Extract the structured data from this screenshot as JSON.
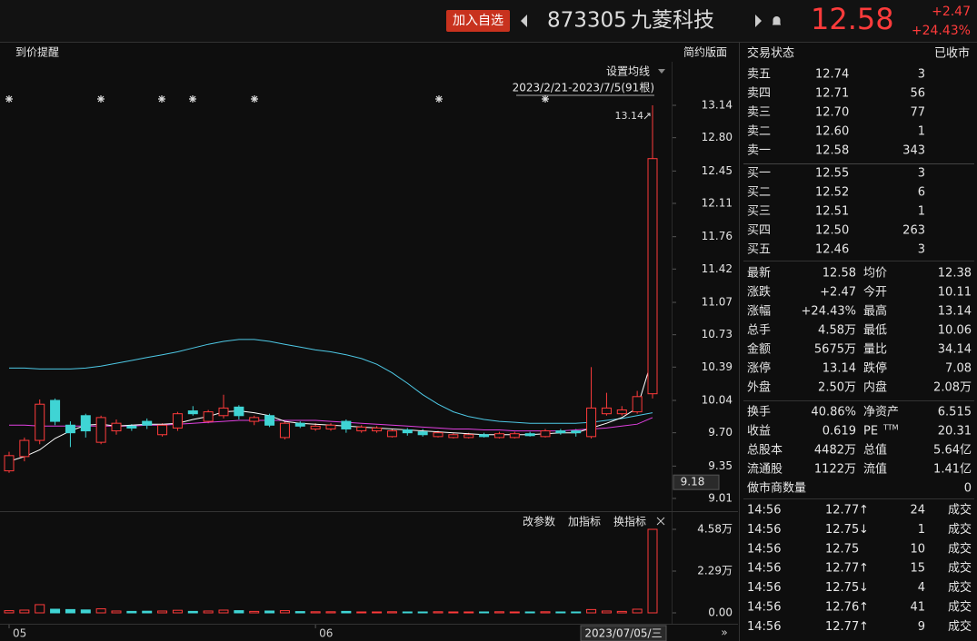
{
  "header": {
    "watch_button": "加入自选",
    "code": "873305",
    "name": "九菱科技",
    "price": "12.58",
    "change": "+2.47",
    "change_pct": "+24.43%"
  },
  "toolbar": {
    "alert": "到价提醒",
    "layout": "简约版面",
    "ma_settings": "设置均线",
    "range": "2023/2/21-2023/7/5(91根)"
  },
  "indicator_toolbar": [
    "改参数",
    "加指标",
    "换指标"
  ],
  "chart_data": {
    "type": "candlestick",
    "categories": [
      "05",
      null,
      null,
      null,
      null,
      null,
      null,
      null,
      null,
      null,
      null,
      null,
      null,
      null,
      null,
      null,
      null,
      null,
      null,
      null,
      "06",
      null,
      null,
      null,
      null,
      null,
      null,
      null,
      null,
      null,
      null,
      null,
      null,
      null,
      null,
      null,
      null,
      null,
      null,
      null,
      null,
      null,
      null
    ],
    "open": [
      9.3,
      9.45,
      9.62,
      10.04,
      9.78,
      9.88,
      9.6,
      9.72,
      9.77,
      9.82,
      9.68,
      9.75,
      9.93,
      9.82,
      9.88,
      9.97,
      9.82,
      9.88,
      9.65,
      9.8,
      9.74,
      9.74,
      9.82,
      9.72,
      9.72,
      9.66,
      9.73,
      9.71,
      9.66,
      9.65,
      9.65,
      9.68,
      9.65,
      9.65,
      9.69,
      9.66,
      9.72,
      9.72,
      9.66,
      9.9,
      9.9,
      9.92,
      10.11
    ],
    "high": [
      9.5,
      9.65,
      10.05,
      10.06,
      9.82,
      9.9,
      9.88,
      9.84,
      9.79,
      9.85,
      9.8,
      9.92,
      9.98,
      9.94,
      10.1,
      9.99,
      9.88,
      9.9,
      9.82,
      9.82,
      9.8,
      9.8,
      9.84,
      9.78,
      9.77,
      9.74,
      9.75,
      9.74,
      9.72,
      9.7,
      9.7,
      9.7,
      9.71,
      9.71,
      9.71,
      9.74,
      9.74,
      9.74,
      10.39,
      10.12,
      9.98,
      10.14,
      13.14
    ],
    "low": [
      9.28,
      9.4,
      9.58,
      9.78,
      9.55,
      9.65,
      9.58,
      9.68,
      9.72,
      9.74,
      9.66,
      9.72,
      9.88,
      9.8,
      9.85,
      9.84,
      9.78,
      9.76,
      9.63,
      9.75,
      9.72,
      9.72,
      9.7,
      9.7,
      9.7,
      9.65,
      9.67,
      9.66,
      9.65,
      9.64,
      9.64,
      9.65,
      9.64,
      9.64,
      9.66,
      9.65,
      9.68,
      9.66,
      9.64,
      9.88,
      9.88,
      9.9,
      10.06
    ],
    "close": [
      9.46,
      9.62,
      10.0,
      9.82,
      9.7,
      9.72,
      9.86,
      9.8,
      9.75,
      9.78,
      9.78,
      9.9,
      9.9,
      9.92,
      9.96,
      9.88,
      9.86,
      9.78,
      9.8,
      9.77,
      9.77,
      9.78,
      9.74,
      9.76,
      9.75,
      9.72,
      9.7,
      9.68,
      9.7,
      9.68,
      9.68,
      9.66,
      9.69,
      9.69,
      9.67,
      9.72,
      9.7,
      9.7,
      9.96,
      9.96,
      9.94,
      10.08,
      12.58
    ],
    "volume": [
      0.12,
      0.15,
      0.45,
      0.2,
      0.18,
      0.16,
      0.22,
      0.1,
      0.08,
      0.09,
      0.1,
      0.14,
      0.08,
      0.1,
      0.15,
      0.12,
      0.08,
      0.1,
      0.12,
      0.07,
      0.06,
      0.06,
      0.08,
      0.05,
      0.05,
      0.06,
      0.05,
      0.05,
      0.06,
      0.05,
      0.05,
      0.05,
      0.06,
      0.05,
      0.05,
      0.06,
      0.05,
      0.05,
      0.18,
      0.1,
      0.08,
      0.2,
      4.58
    ],
    "up_color": "#ff3b3b",
    "down_color": "#3fd4d4",
    "ma": [
      {
        "color": "#4ec9e6",
        "values": [
          10.38,
          10.38,
          10.37,
          10.37,
          10.37,
          10.38,
          10.4,
          10.43,
          10.46,
          10.49,
          10.52,
          10.55,
          10.59,
          10.63,
          10.66,
          10.68,
          10.68,
          10.66,
          10.63,
          10.6,
          10.57,
          10.55,
          10.52,
          10.48,
          10.42,
          10.33,
          10.22,
          10.1,
          10.0,
          9.92,
          9.87,
          9.84,
          9.82,
          9.81,
          9.8,
          9.8,
          9.8,
          9.8,
          9.81,
          9.83,
          9.85,
          9.88,
          9.91
        ]
      },
      {
        "color": "#e040e0",
        "values": [
          9.78,
          9.78,
          9.77,
          9.77,
          9.77,
          9.77,
          9.77,
          9.77,
          9.77,
          9.78,
          9.78,
          9.79,
          9.8,
          9.81,
          9.82,
          9.83,
          9.83,
          9.83,
          9.83,
          9.83,
          9.83,
          9.82,
          9.81,
          9.8,
          9.79,
          9.78,
          9.77,
          9.76,
          9.75,
          9.74,
          9.74,
          9.73,
          9.73,
          9.72,
          9.72,
          9.72,
          9.72,
          9.73,
          9.74,
          9.75,
          9.77,
          9.79,
          9.86
        ]
      },
      {
        "color": "#ffffff",
        "values": [
          9.4,
          9.45,
          9.52,
          9.64,
          9.72,
          9.78,
          9.79,
          9.77,
          9.78,
          9.79,
          9.79,
          9.8,
          9.84,
          9.87,
          9.92,
          9.93,
          9.91,
          9.88,
          9.82,
          9.8,
          9.79,
          9.78,
          9.77,
          9.76,
          9.75,
          9.74,
          9.73,
          9.72,
          9.71,
          9.7,
          9.69,
          9.68,
          9.68,
          9.68,
          9.68,
          9.69,
          9.7,
          9.7,
          9.75,
          9.8,
          9.86,
          9.96,
          10.49
        ]
      }
    ],
    "ylim": [
      9.01,
      13.14
    ],
    "yticks": [
      13.14,
      {
        "value": 12.8,
        "label": "12.80"
      },
      12.45,
      12.11,
      11.76,
      11.42,
      11.07,
      10.73,
      10.39,
      10.04,
      {
        "value": 9.7,
        "label": "9.70"
      },
      9.35,
      9.01
    ],
    "max_label": 13.14,
    "cursor_price": 9.18,
    "cursor_date": "2023/07/05/三",
    "vol_ylim": [
      0,
      4.58
    ],
    "vol_yticks": [
      {
        "value": 4.58,
        "label": "4.58万"
      },
      {
        "value": 2.29,
        "label": "2.29万"
      },
      {
        "value": 0,
        "label": "0.00"
      }
    ]
  },
  "book": {
    "status_label": "交易状态",
    "status": "已收市",
    "price_color": "#ff3b3b",
    "sell": [
      {
        "label": "卖五",
        "price": "12.74",
        "volume": "3"
      },
      {
        "label": "卖四",
        "price": "12.71",
        "volume": "56"
      },
      {
        "label": "卖三",
        "price": "12.70",
        "volume": "77"
      },
      {
        "label": "卖二",
        "price": "12.60",
        "volume": "1"
      },
      {
        "label": "卖一",
        "price": "12.58",
        "volume": "343"
      }
    ],
    "buy": [
      {
        "label": "买一",
        "price": "12.55",
        "volume": "3"
      },
      {
        "label": "买二",
        "price": "12.52",
        "volume": "6"
      },
      {
        "label": "买三",
        "price": "12.51",
        "volume": "1"
      },
      {
        "label": "买四",
        "price": "12.50",
        "volume": "263"
      },
      {
        "label": "买五",
        "price": "12.46",
        "volume": "3"
      }
    ]
  },
  "quote_stats": [
    [
      {
        "label": "最新",
        "value": "12.58",
        "color": "#ff3b3b"
      },
      {
        "label": "均价",
        "value": "12.38",
        "color": "#ff3b3b"
      }
    ],
    [
      {
        "label": "涨跌",
        "value": "+2.47",
        "color": "#ff3b3b"
      },
      {
        "label": "今开",
        "value": "10.11",
        "color": "#e6e6e6"
      }
    ],
    [
      {
        "label": "涨幅",
        "value": "+24.43%",
        "color": "#ff3b3b"
      },
      {
        "label": "最高",
        "value": "13.14",
        "color": "#ff3b3b"
      }
    ],
    [
      {
        "label": "总手",
        "value": "4.58万",
        "color": "#e6e6e6"
      },
      {
        "label": "最低",
        "value": "10.06",
        "color": "#1fc01f"
      }
    ],
    [
      {
        "label": "金额",
        "value": "5675万",
        "color": "#3ad6f0"
      },
      {
        "label": "量比",
        "value": "34.14",
        "color": "#e6e6e6"
      }
    ],
    [
      {
        "label": "涨停",
        "value": "13.14",
        "color": "#ff3b3b"
      },
      {
        "label": "跌停",
        "value": "7.08",
        "color": "#1fc01f"
      }
    ],
    [
      {
        "label": "外盘",
        "value": "2.50万",
        "color": "#ff3b3b"
      },
      {
        "label": "内盘",
        "value": "2.08万",
        "color": "#1fc01f"
      }
    ]
  ],
  "fundamentals": [
    [
      {
        "label": "换手",
        "value": "40.86%"
      },
      {
        "label": "净资产",
        "value": "6.515"
      }
    ],
    [
      {
        "label": "收益",
        "value": "0.619"
      },
      {
        "label": "PE",
        "sup": "TTM",
        "value": "20.31"
      }
    ],
    [
      {
        "label": "总股本",
        "value": "4482万"
      },
      {
        "label": "总值",
        "value": "5.64亿"
      }
    ],
    [
      {
        "label": "流通股",
        "value": "1122万"
      },
      {
        "label": "流值",
        "value": "1.41亿"
      }
    ],
    [
      {
        "label": "做市商数量",
        "value": "0"
      }
    ]
  ],
  "trades": [
    {
      "time": "14:56",
      "price": "12.77",
      "arrow": "↑",
      "volume": "24",
      "status": "成交",
      "color": "#ff3b3b"
    },
    {
      "time": "14:56",
      "price": "12.75",
      "arrow": "↓",
      "volume": "1",
      "status": "成交",
      "color": "#1fc01f"
    },
    {
      "time": "14:56",
      "price": "12.75",
      "volume": "10",
      "status": "成交",
      "color": "#1fc01f"
    },
    {
      "time": "14:56",
      "price": "12.77",
      "arrow": "↑",
      "volume": "15",
      "status": "成交",
      "color": "#ff3b3b"
    },
    {
      "time": "14:56",
      "price": "12.75",
      "arrow": "↓",
      "volume": "4",
      "status": "成交",
      "color": "#1fc01f"
    },
    {
      "time": "14:56",
      "price": "12.76",
      "arrow": "↑",
      "volume": "41",
      "status": "成交",
      "color": "#ff3b3b"
    },
    {
      "time": "14:56",
      "price": "12.77",
      "arrow": "↑",
      "volume": "9",
      "status": "成交",
      "color": "#ff3b3b"
    }
  ]
}
